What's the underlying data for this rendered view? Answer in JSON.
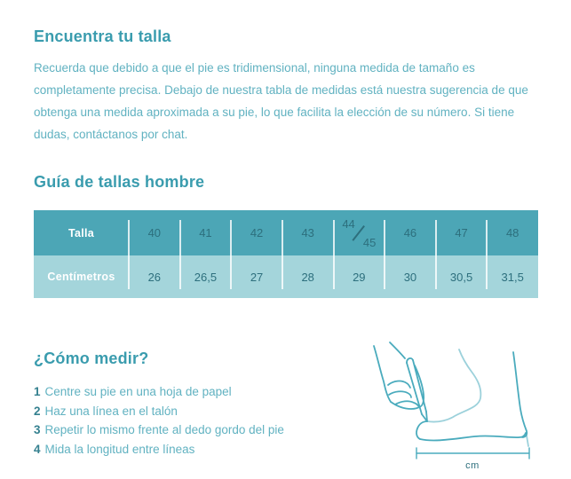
{
  "colors": {
    "heading": "#3a9cae",
    "body_text": "#61b2c1",
    "step_number": "#34808f",
    "table_header_bg": "#4ca6b6",
    "table_row_bg": "#a4d5db",
    "table_value_text": "#2d6f7d",
    "table_label_text": "#ffffff",
    "illustration_stroke": "#4aabbd",
    "background": "#ffffff"
  },
  "intro": {
    "title": "Encuentra tu talla",
    "body": "Recuerda que debido a que el pie es tridimensional, ninguna medida de tamaño es completamente precisa. Debajo de nuestra tabla de medidas está nuestra sugerencia de que obtenga una medida aproximada a su pie, lo que facilita la elección de su número. Si tiene dudas, contáctanos por chat."
  },
  "size_guide": {
    "title": "Guía de tallas hombre",
    "table": {
      "rows": [
        {
          "label": "Talla",
          "values": [
            "40",
            "41",
            "42",
            "43",
            "44/45",
            "46",
            "47",
            "48"
          ]
        },
        {
          "label": "Centímetros",
          "values": [
            "26",
            "26,5",
            "27",
            "28",
            "29",
            "30",
            "30,5",
            "31,5"
          ]
        }
      ]
    }
  },
  "how_to_measure": {
    "title": "¿Cómo medir?",
    "steps": [
      {
        "number": "1",
        "text": "Centre su pie en una hoja de papel"
      },
      {
        "number": "2",
        "text": "Haz una línea en el talón"
      },
      {
        "number": "3",
        "text": "Repetir lo mismo frente al dedo gordo del pie"
      },
      {
        "number": "4",
        "text": "Mida la longitud entre líneas"
      }
    ],
    "illustration": {
      "unit_label": "cm"
    }
  }
}
